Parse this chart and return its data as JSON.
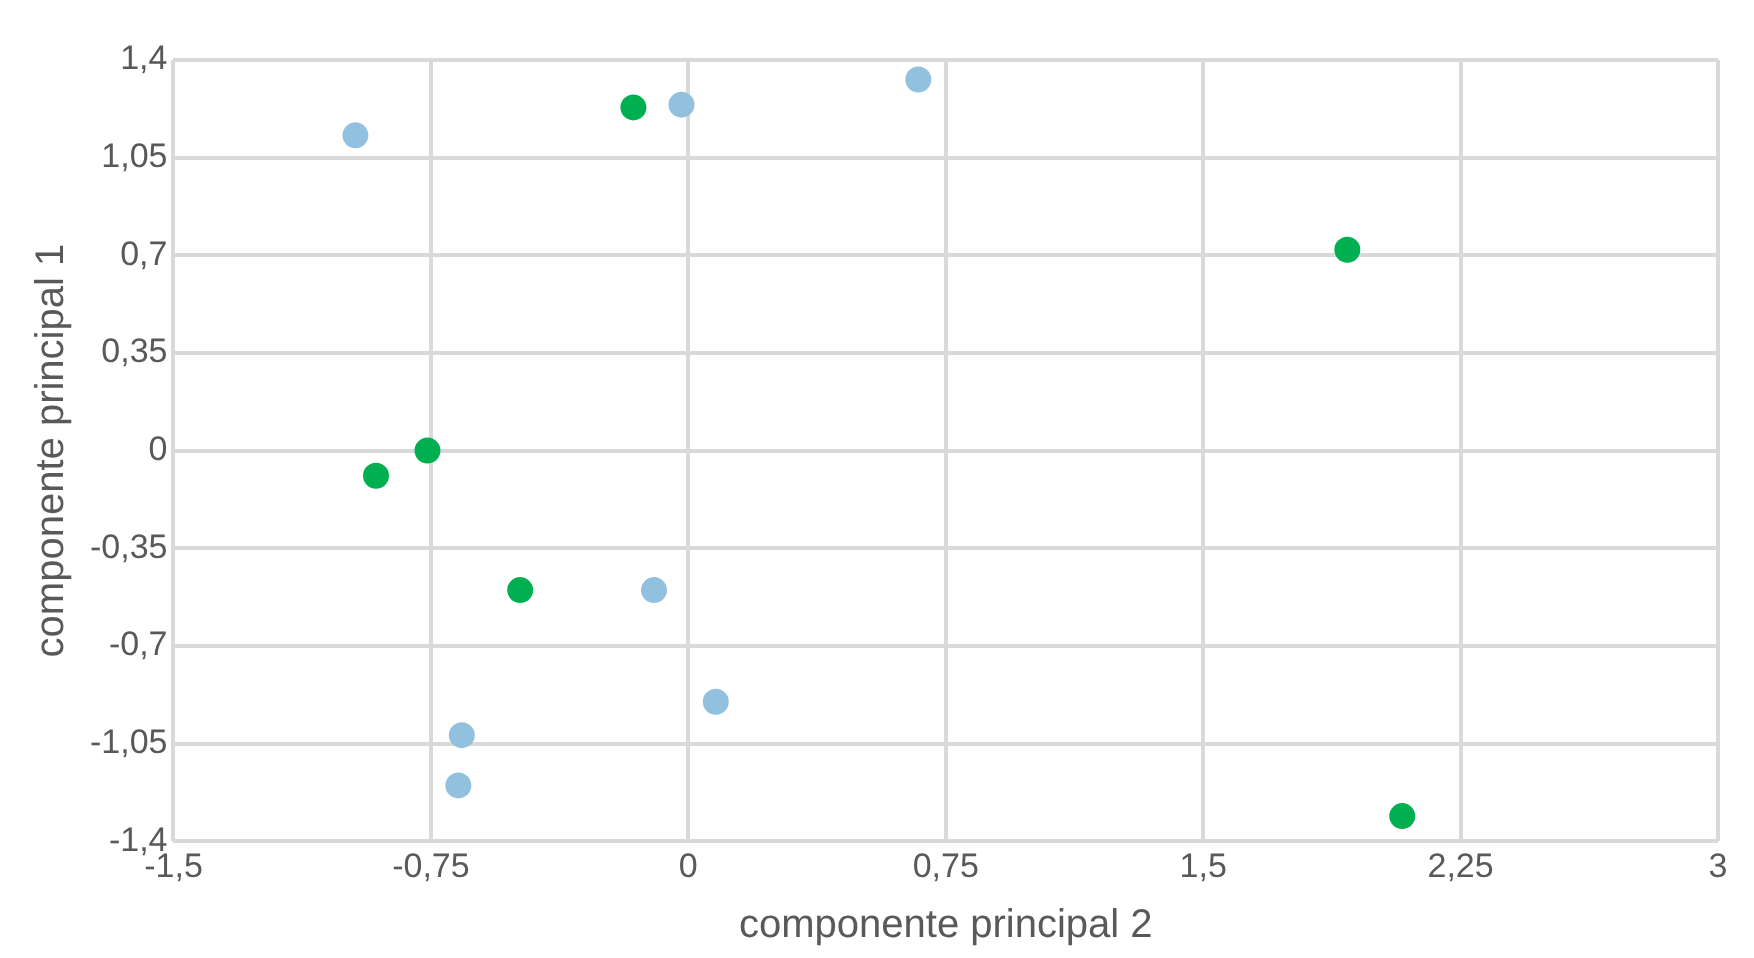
{
  "chart_data": {
    "type": "scatter",
    "xlabel": "componente principal 2",
    "ylabel": "componente principal 1",
    "series": [
      {
        "color": "#92c1e0",
        "x": [
          -0.97,
          -0.02,
          0.67,
          -0.1,
          0.08,
          -0.66,
          -0.67
        ],
        "values": [
          1.13,
          1.24,
          1.33,
          -0.5,
          -0.9,
          -1.02,
          -1.2
        ]
      },
      {
        "color": "#00b050",
        "x": [
          -0.16,
          1.92,
          -0.76,
          -0.91,
          -0.49,
          2.08
        ],
        "values": [
          1.23,
          0.72,
          0,
          -0.09,
          -0.5,
          -1.31
        ]
      }
    ],
    "xlim": [
      -1.5,
      3
    ],
    "xticks": [
      {
        "value": -1.5,
        "label": "-1,5"
      },
      {
        "value": -0.75,
        "label": "-0,75"
      },
      0,
      {
        "value": 0.75,
        "label": "0,75"
      },
      {
        "value": 1.5,
        "label": "1,5"
      },
      {
        "value": 2.25,
        "label": "2,25"
      },
      3
    ],
    "ylim": [
      -1.4,
      1.4
    ],
    "yticks": [
      {
        "value": -1.4,
        "label": "-1,4"
      },
      {
        "value": -1.05,
        "label": "-1,05"
      },
      {
        "value": -0.7,
        "label": "-0,7"
      },
      {
        "value": -0.35,
        "label": "-0,35"
      },
      0,
      {
        "value": 0.35,
        "label": "0,35"
      },
      {
        "value": 0.7,
        "label": "0,7"
      },
      {
        "value": 1.05,
        "label": "1,05"
      },
      {
        "value": 1.4,
        "label": "1,4"
      }
    ],
    "grid": true,
    "legend": false,
    "marker": "circle"
  }
}
